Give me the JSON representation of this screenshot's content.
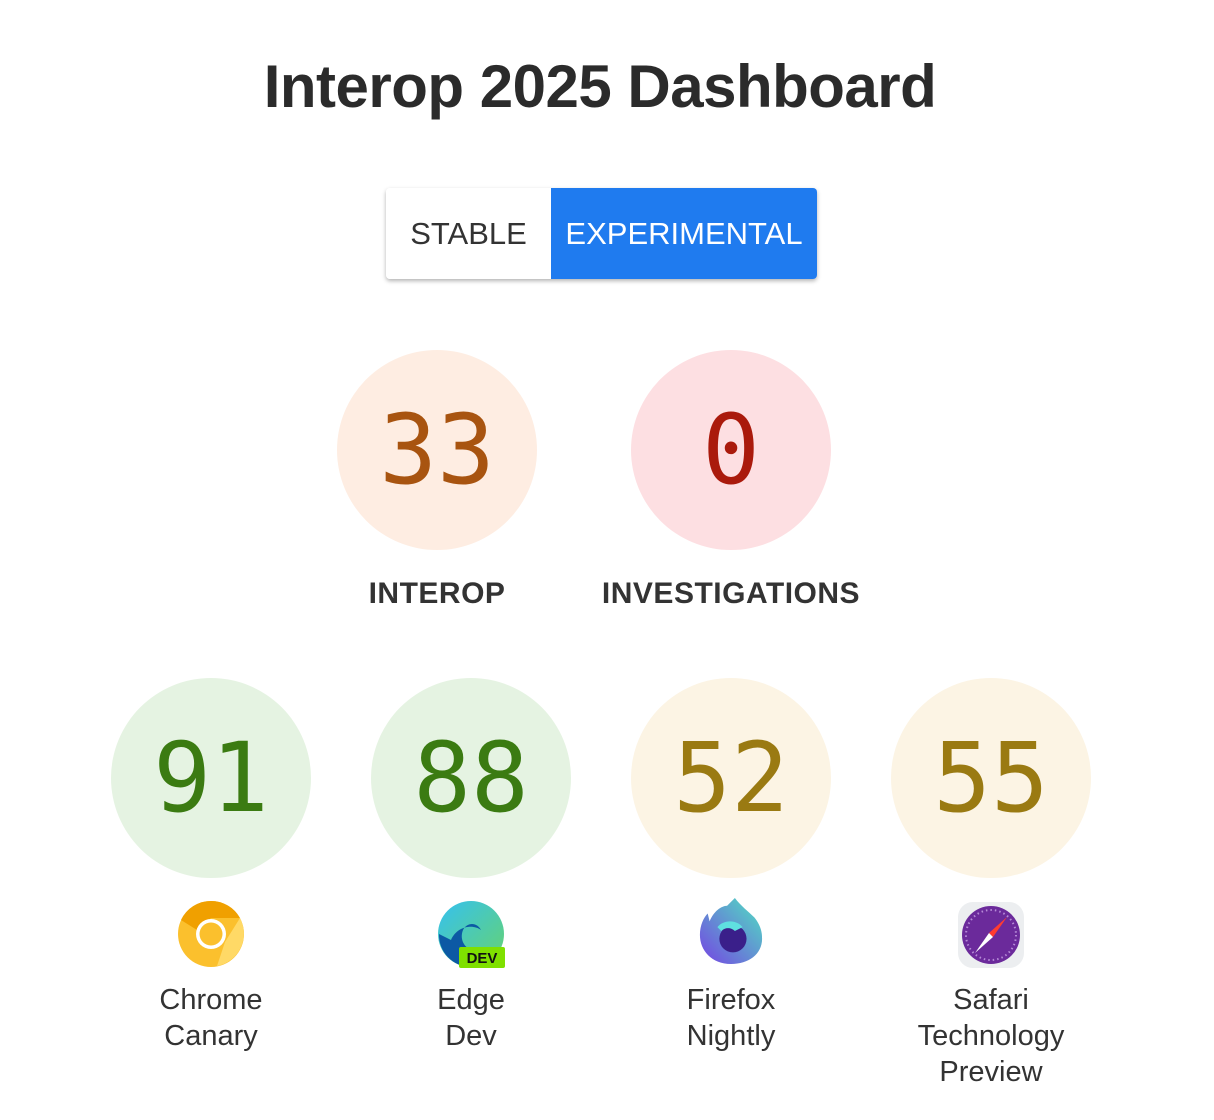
{
  "title": "Interop 2025 Dashboard",
  "toggle": {
    "stable": "STABLE",
    "experimental": "EXPERIMENTAL",
    "selected": "EXPERIMENTAL"
  },
  "summary": [
    {
      "label": "INTEROP",
      "score": "33",
      "bg": "#feede2",
      "fg": "#a85410"
    },
    {
      "label": "INVESTIGATIONS",
      "score": "0",
      "bg": "#fddfe2",
      "fg": "#aa1a0c"
    }
  ],
  "browsers": [
    {
      "name_line1": "Chrome",
      "name_line2": "Canary",
      "score": "91",
      "icon": "chrome-canary-icon",
      "bg": "#e5f3e2",
      "fg": "#3b7b12"
    },
    {
      "name_line1": "Edge",
      "name_line2": "Dev",
      "score": "88",
      "icon": "edge-dev-icon",
      "bg": "#e5f3e2",
      "fg": "#3b7b12",
      "badge": "DEV"
    },
    {
      "name_line1": "Firefox",
      "name_line2": "Nightly",
      "score": "52",
      "icon": "firefox-nightly-icon",
      "bg": "#fcf4e4",
      "fg": "#9a7a12"
    },
    {
      "name_line1": "Safari",
      "name_line2": "Technology",
      "name_line3": "Preview",
      "score": "55",
      "icon": "safari-technology-preview-icon",
      "bg": "#fcf4e4",
      "fg": "#9a7a12"
    }
  ]
}
